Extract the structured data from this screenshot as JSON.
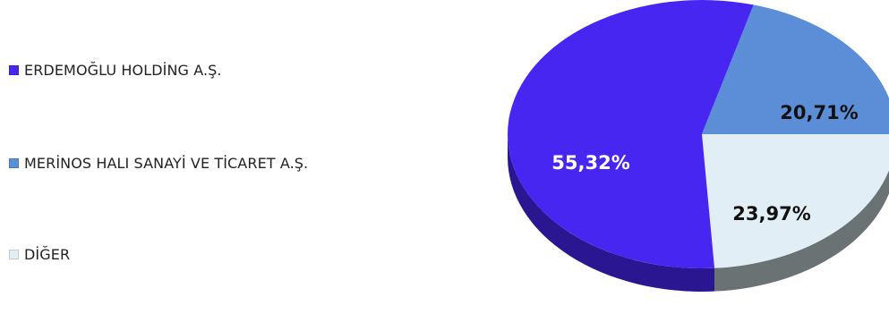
{
  "chart_data": {
    "type": "pie",
    "title": "",
    "slices": [
      {
        "label": "ERDEMOĞLU HOLDİNG A.Ş.",
        "value": 55.32,
        "display": "55,32%",
        "color": "#4726F2",
        "side_color": "#2A1690",
        "text_color": "#ffffff"
      },
      {
        "label": "MERİNOS HALI SANAYİ VE TİCARET A.Ş.",
        "value": 20.71,
        "display": "20,71%",
        "color": "#5B8ED6",
        "side_color": "#3A5F95",
        "text_color": "#111111"
      },
      {
        "label": "DİĞER",
        "value": 23.97,
        "display": "23,97%",
        "color": "#E2EEF5",
        "side_color": "#6B7274",
        "text_color": "#111111"
      }
    ],
    "legend_position": "left",
    "style": "3d-pie"
  }
}
